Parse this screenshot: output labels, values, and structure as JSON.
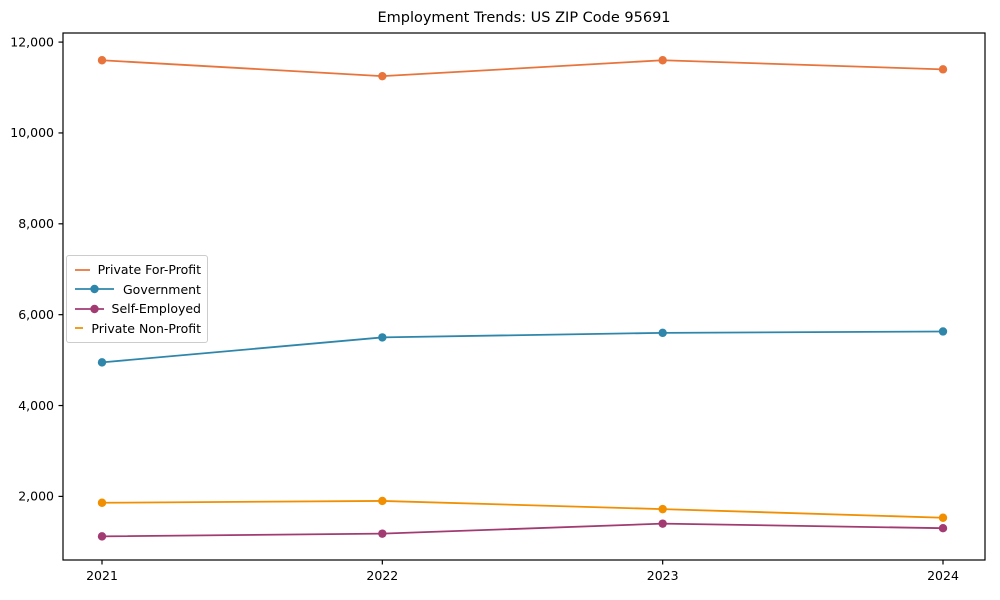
{
  "chart": {
    "title": "Employment Trends: US ZIP Code 95691"
  },
  "chart_data": {
    "type": "line",
    "title": "Employment Trends: US ZIP Code 95691",
    "x": [
      2021,
      2022,
      2023,
      2024
    ],
    "xtick_labels": [
      "2021",
      "2022",
      "2023",
      "2024"
    ],
    "series": [
      {
        "name": "Private For-Profit",
        "color": "#e8743b",
        "values": [
          11600,
          11250,
          11600,
          11400
        ]
      },
      {
        "name": "Government",
        "color": "#2e86ab",
        "values": [
          4950,
          5500,
          5600,
          5630
        ]
      },
      {
        "name": "Self-Employed",
        "color": "#a23b72",
        "values": [
          1120,
          1180,
          1400,
          1300
        ]
      },
      {
        "name": "Private Non-Profit",
        "color": "#f18f01",
        "values": [
          1860,
          1900,
          1720,
          1530
        ]
      }
    ],
    "xlabel": "",
    "ylabel": "",
    "ylim": [
      600,
      12200
    ],
    "yticks": [
      2000,
      4000,
      6000,
      8000,
      10000,
      12000
    ],
    "ytick_labels": [
      "2,000",
      "4,000",
      "6,000",
      "8,000",
      "10,000",
      "12,000"
    ],
    "grid": false,
    "marker": "circle",
    "legend_position": "center-left",
    "axis_color": "#000000"
  }
}
